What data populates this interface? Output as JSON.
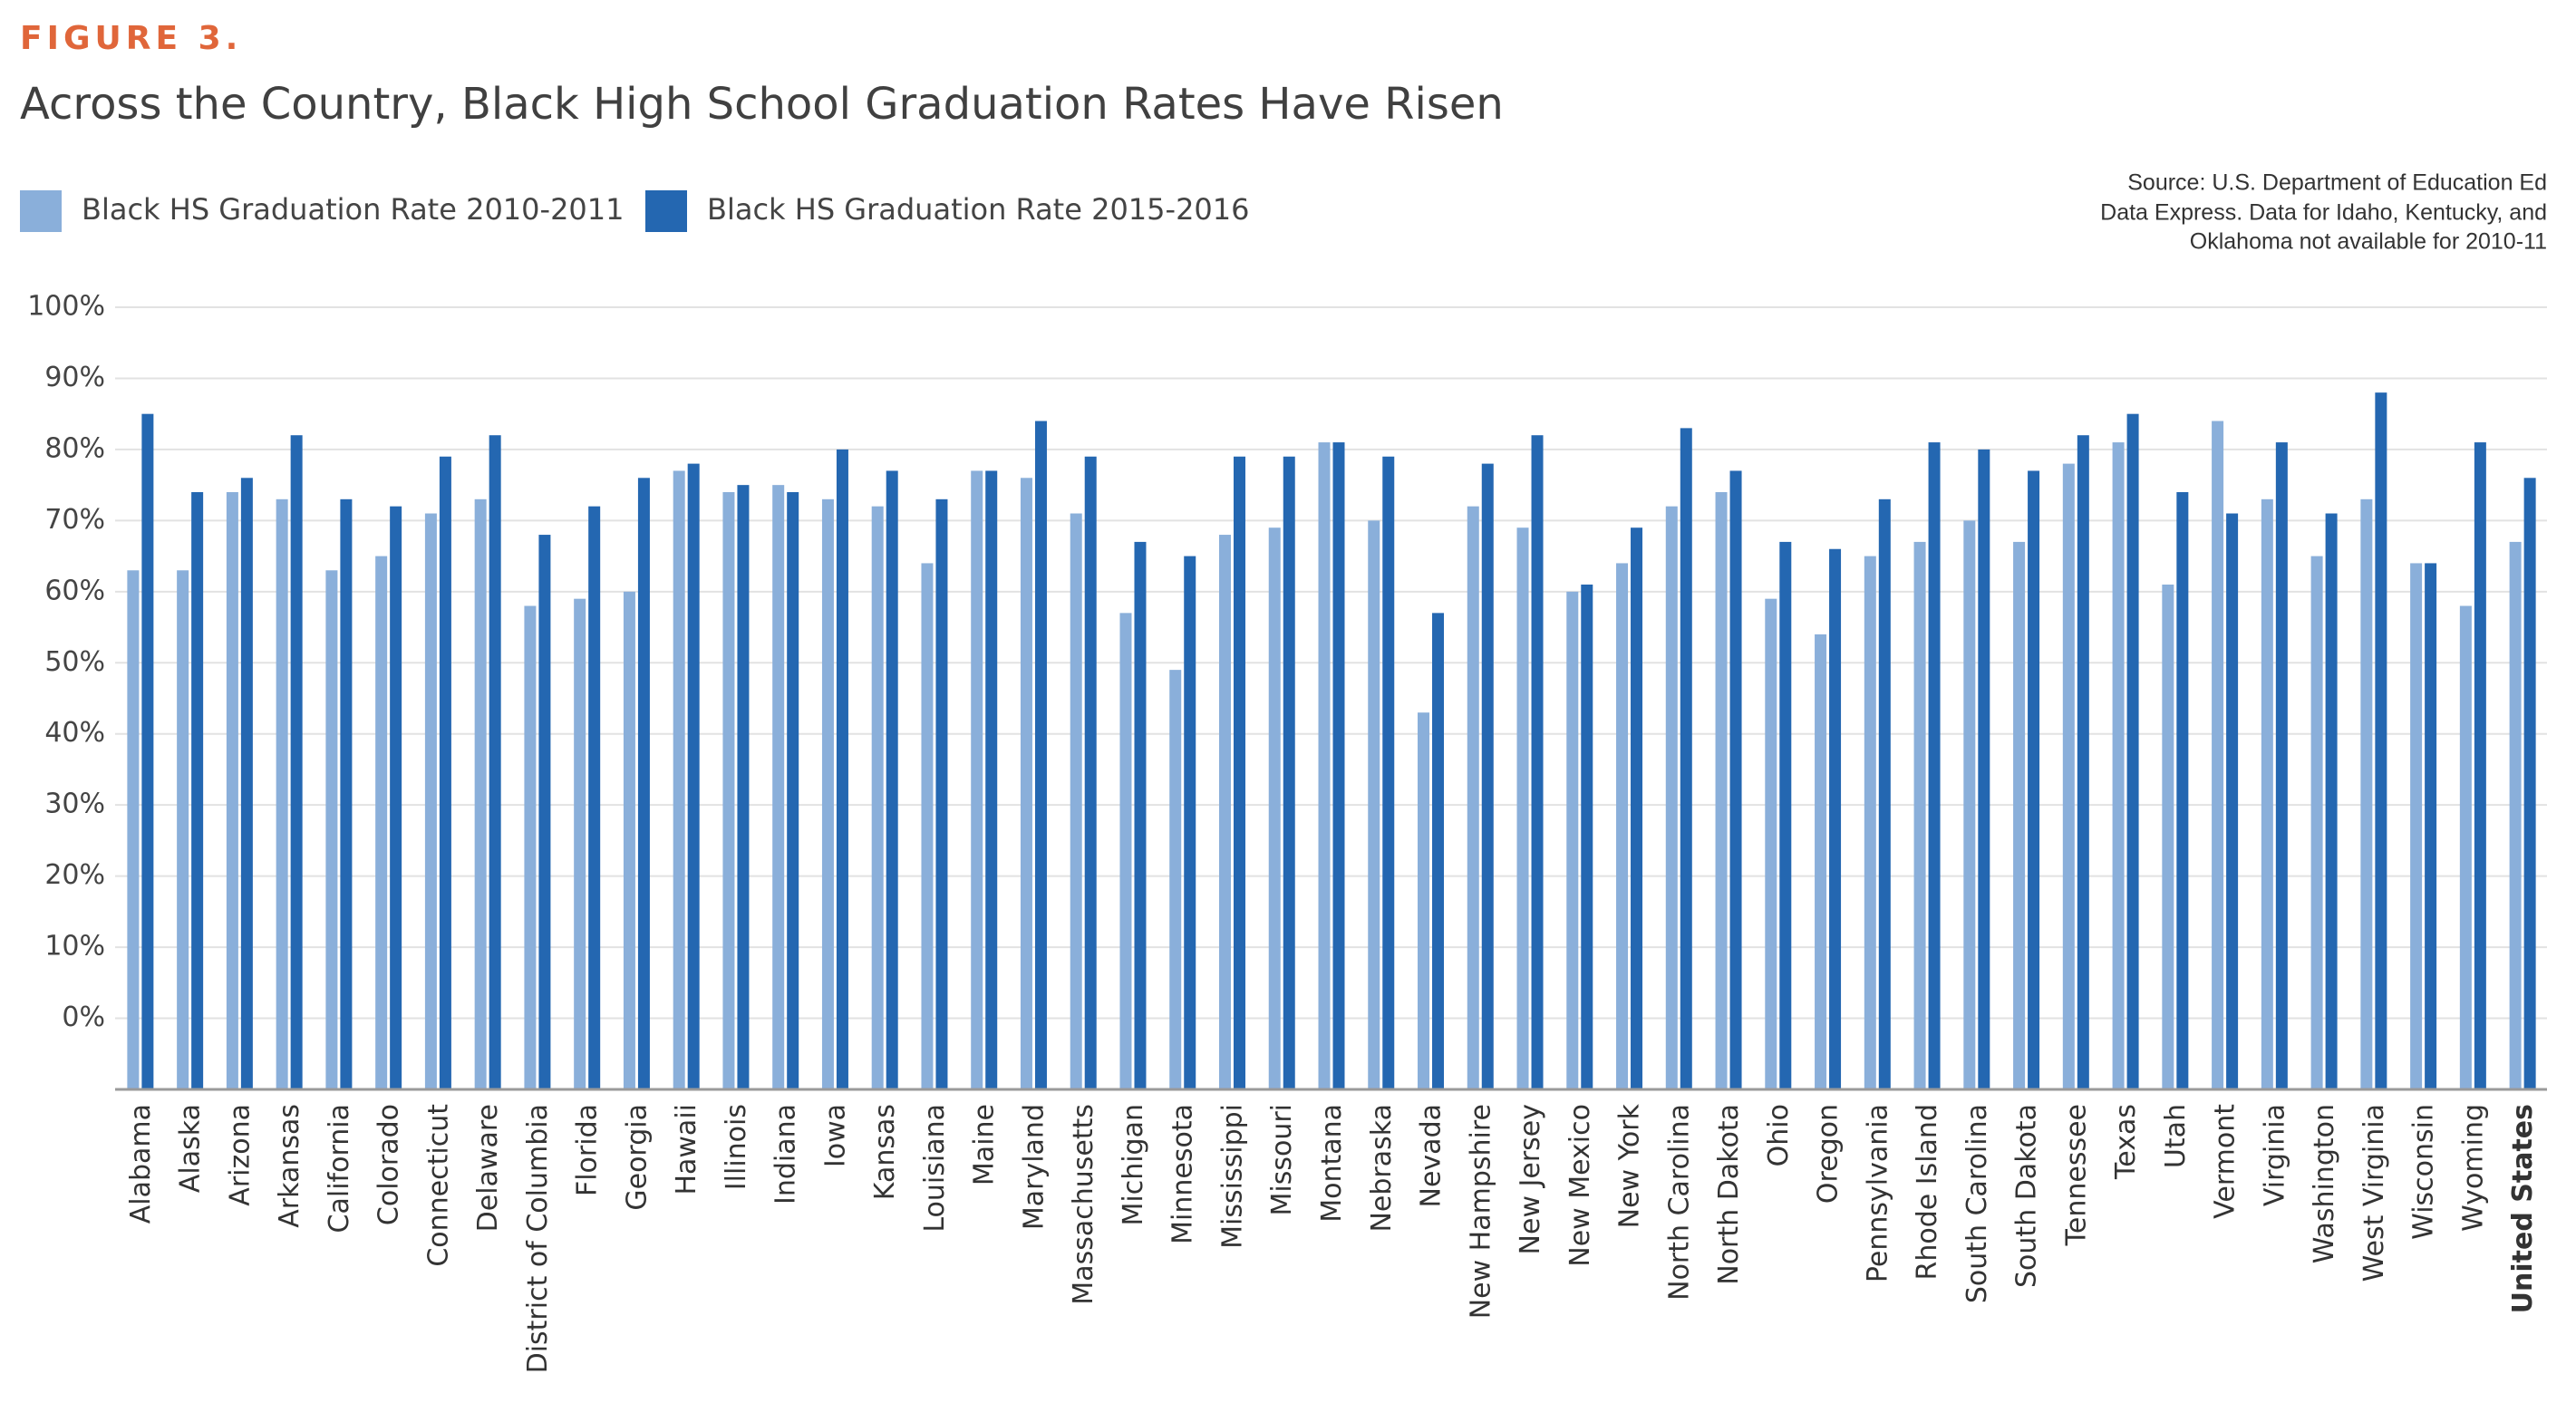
{
  "figure_label": "FIGURE 3.",
  "chart_data": {
    "type": "bar",
    "title": "Across the Country, Black High School Graduation Rates Have Risen",
    "source": [
      "Source: U.S. Department of Education Ed",
      "Data Express. Data for Idaho, Kentucky, and",
      "Oklahoma not available for 2010-11"
    ],
    "categories": [
      "Alabama",
      "Alaska",
      "Arizona",
      "Arkansas",
      "California",
      "Colorado",
      "Connecticut",
      "Delaware",
      "District of Columbia",
      "Florida",
      "Georgia",
      "Hawaii",
      "Illinois",
      "Indiana",
      "Iowa",
      "Kansas",
      "Louisiana",
      "Maine",
      "Maryland",
      "Massachusetts",
      "Michigan",
      "Minnesota",
      "Mississippi",
      "Missouri",
      "Montana",
      "Nebraska",
      "Nevada",
      "New Hampshire",
      "New Jersey",
      "New Mexico",
      "New York",
      "North Carolina",
      "North Dakota",
      "Ohio",
      "Oregon",
      "Pennsylvania",
      "Rhode Island",
      "South Carolina",
      "South Dakota",
      "Tennessee",
      "Texas",
      "Utah",
      "Vermont",
      "Virginia",
      "Washington",
      "West Virginia",
      "Wisconsin",
      "Wyoming",
      "United States"
    ],
    "series": [
      {
        "name": "Black HS Graduation Rate 2010-2011",
        "color": "#8aafda",
        "values": [
          63,
          63,
          74,
          73,
          63,
          65,
          71,
          73,
          58,
          59,
          60,
          77,
          74,
          75,
          73,
          72,
          64,
          77,
          76,
          71,
          57,
          49,
          68,
          69,
          81,
          70,
          43,
          72,
          69,
          60,
          64,
          72,
          74,
          59,
          54,
          65,
          67,
          70,
          67,
          78,
          81,
          61,
          84,
          73,
          65,
          73,
          64,
          58,
          67
        ]
      },
      {
        "name": "Black HS Graduation Rate 2015-2016",
        "color": "#2467b1",
        "values": [
          85,
          74,
          76,
          82,
          73,
          72,
          79,
          82,
          68,
          72,
          76,
          78,
          75,
          74,
          80,
          77,
          73,
          77,
          84,
          79,
          67,
          65,
          79,
          79,
          81,
          79,
          57,
          78,
          82,
          61,
          69,
          83,
          77,
          67,
          66,
          73,
          81,
          80,
          77,
          82,
          85,
          74,
          71,
          81,
          71,
          88,
          64,
          81,
          76
        ]
      }
    ],
    "ylim": [
      -10,
      100
    ],
    "yticks": [
      {
        "value": 0,
        "label": "0%"
      },
      {
        "value": 10,
        "label": "10%"
      },
      {
        "value": 20,
        "label": "20%"
      },
      {
        "value": 30,
        "label": "30%"
      },
      {
        "value": 40,
        "label": "40%"
      },
      {
        "value": 50,
        "label": "50%"
      },
      {
        "value": 60,
        "label": "60%"
      },
      {
        "value": 70,
        "label": "70%"
      },
      {
        "value": 80,
        "label": "80%"
      },
      {
        "value": 90,
        "label": "90%"
      },
      {
        "value": 100,
        "label": "100%"
      }
    ],
    "grid": true
  }
}
